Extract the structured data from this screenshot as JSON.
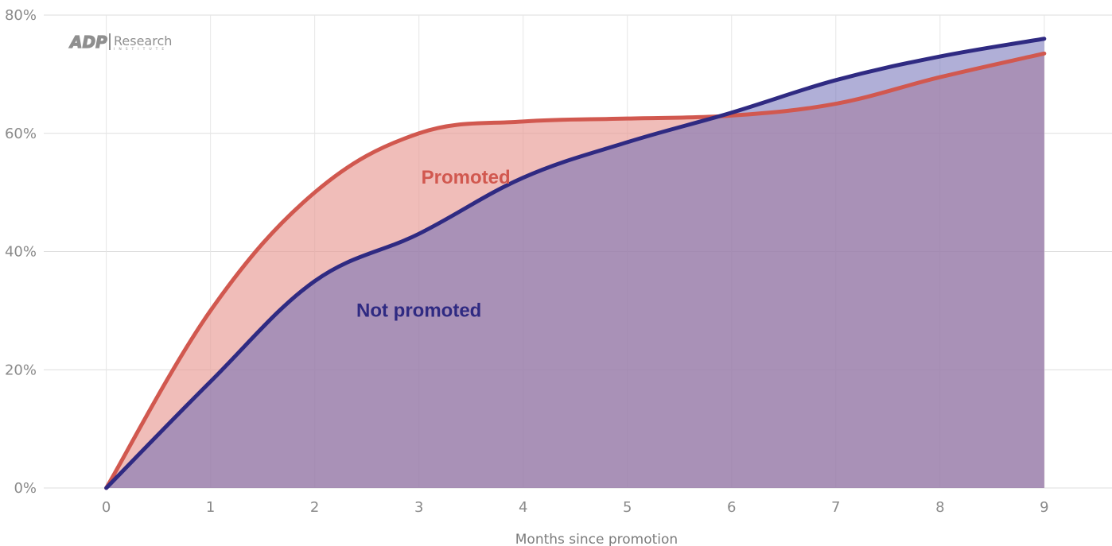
{
  "logo": {
    "brand": "ADP",
    "name": "Research",
    "sub": "INSTITUTE"
  },
  "chart_data": {
    "type": "area",
    "title": "",
    "xlabel": "Months since promotion",
    "ylabel": "",
    "x": [
      0,
      1,
      2,
      3,
      4,
      5,
      6,
      7,
      8,
      9
    ],
    "xlim": [
      -0.6,
      9.65
    ],
    "ylim": [
      0,
      80
    ],
    "y_ticks": [
      0,
      20,
      40,
      60,
      80
    ],
    "y_tick_labels": [
      "0%",
      "20%",
      "40%",
      "60%",
      "80%"
    ],
    "x_tick_labels": [
      "0",
      "1",
      "2",
      "3",
      "4",
      "5",
      "6",
      "7",
      "8",
      "9"
    ],
    "grid": true,
    "legend": "none (inline series labels)",
    "series": [
      {
        "name": "Promoted",
        "values": [
          0,
          30,
          50,
          60,
          62,
          62.5,
          63,
          65,
          69.5,
          73.5
        ],
        "line_color": "#d1584f",
        "fill_color": "#e89a94",
        "fill_opacity": 0.65,
        "label_at": [
          3.45,
          51.5
        ]
      },
      {
        "name": "Not promoted",
        "values": [
          0,
          18,
          35,
          43,
          52.5,
          58.5,
          63.5,
          69,
          73,
          76
        ],
        "line_color": "#2f2a82",
        "fill_color": "#6f6db7",
        "fill_opacity": 0.55,
        "label_at": [
          3,
          29
        ]
      }
    ]
  }
}
